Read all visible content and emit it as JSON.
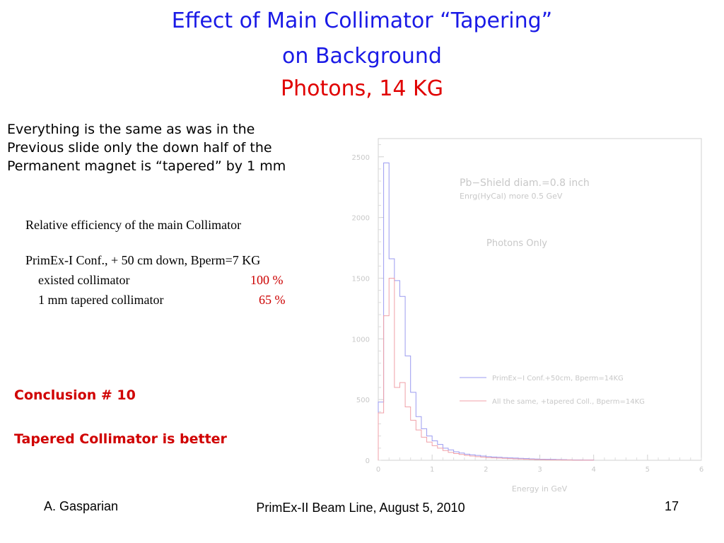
{
  "slide": {
    "title_line1": "Effect of Main Collimator “Tapering”",
    "title_line2": "on Background",
    "subtitle": "Photons,  14 KG",
    "intro_lines": [
      "Everything is the same as was in the",
      "Previous slide only the down half of the",
      "Permanent magnet is “tapered” by 1 mm"
    ],
    "efficiency": {
      "heading": "Relative efficiency of the main Collimator",
      "config": "PrimEx-I Conf., + 50 cm down, Bperm=7 KG",
      "rows": [
        {
          "label": "existed collimator",
          "value": "100 %"
        },
        {
          "label": "1 mm tapered collimator",
          "value": "65 %"
        }
      ]
    },
    "conclusion_heading": "Conclusion # 10",
    "conclusion_text": "Tapered Collimator is better",
    "footer": {
      "author": "A. Gasparian",
      "event": "PrimEx-II Beam Line, August 5, 2010",
      "page": "17"
    }
  },
  "chart_data": {
    "type": "histogram",
    "xlabel": "Energy in GeV",
    "ylabel": "",
    "xlim": [
      0,
      6
    ],
    "ylim": [
      0,
      2650
    ],
    "x_ticks": [
      "0",
      "1",
      "2",
      "3",
      "4",
      "5",
      "6"
    ],
    "y_ticks": [
      "0",
      "500",
      "1000",
      "1500",
      "2000",
      "2500"
    ],
    "annotations": [
      "Pb−Shield diam.=0.8 inch",
      "Enrg(HyCal) more 0.5 GeV",
      "Photons Only"
    ],
    "bin_width": 0.1,
    "bin_start": 0,
    "series_colors": [
      "#9b9bf0",
      "#f0a0a8"
    ],
    "series": [
      {
        "name": "PrimEx−I Conf.+50cm, Bperm=14KG",
        "values": [
          480,
          2450,
          1660,
          1480,
          1350,
          860,
          560,
          360,
          260,
          200,
          160,
          130,
          100,
          85,
          70,
          60,
          50,
          45,
          40,
          35,
          30,
          27,
          25,
          22,
          20,
          18,
          16,
          14,
          12,
          10,
          9,
          8,
          7,
          6,
          5,
          4,
          3,
          3,
          2,
          2
        ]
      },
      {
        "name": "All the same, +tapered Coll., Bperm=14KG",
        "values": [
          390,
          1190,
          1500,
          600,
          640,
          440,
          330,
          250,
          190,
          150,
          120,
          100,
          80,
          65,
          55,
          48,
          40,
          35,
          30,
          26,
          22,
          20,
          18,
          16,
          14,
          12,
          10,
          8,
          7,
          6,
          5,
          4,
          3,
          3,
          2,
          2,
          1,
          1,
          1,
          1
        ]
      }
    ]
  }
}
